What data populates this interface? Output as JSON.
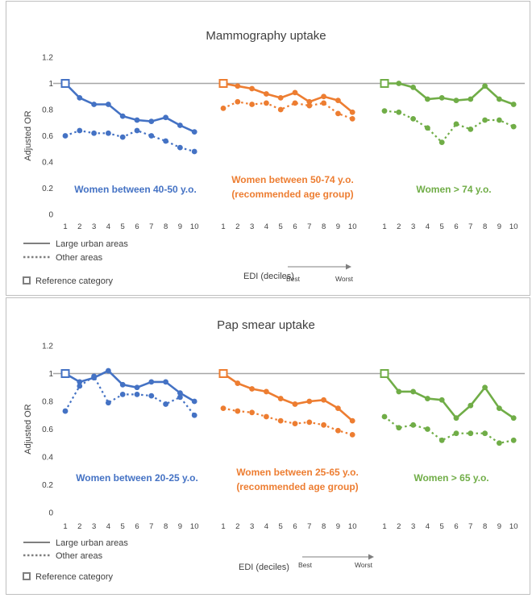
{
  "chart_data": [
    {
      "type": "line",
      "title": "Mammography uptake",
      "ylabel": "Adjusted OR",
      "ylim": [
        0,
        1.2
      ],
      "yticks": [
        "0",
        "0.2",
        "0.4",
        "0.6",
        "0.8",
        "1",
        "1.2"
      ],
      "xlabel": "EDI (deciles)",
      "x_arrow_start": "Best",
      "x_arrow_end": "Worst",
      "x": [
        "1",
        "2",
        "3",
        "4",
        "5",
        "6",
        "7",
        "8",
        "9",
        "10"
      ],
      "reference_line": 1,
      "legend": {
        "large_urban": "Large urban areas",
        "other_areas": "Other areas",
        "reference": "Reference category"
      },
      "panels": [
        {
          "label_line1": "Women between 40-50 y.o.",
          "label_line2": "",
          "color": "#4472c4",
          "large_urban": [
            1.0,
            0.89,
            0.84,
            0.84,
            0.75,
            0.72,
            0.71,
            0.74,
            0.68,
            0.63
          ],
          "other_areas": [
            0.6,
            0.64,
            0.62,
            0.62,
            0.59,
            0.64,
            0.6,
            0.56,
            0.51,
            0.48
          ]
        },
        {
          "label_line1": "Women between 50-74 y.o.",
          "label_line2": "(recommended age group)",
          "color": "#ed7d31",
          "large_urban": [
            1.0,
            0.98,
            0.96,
            0.92,
            0.89,
            0.93,
            0.86,
            0.9,
            0.87,
            0.78
          ],
          "other_areas": [
            0.81,
            0.86,
            0.84,
            0.85,
            0.8,
            0.85,
            0.83,
            0.85,
            0.77,
            0.73
          ]
        },
        {
          "label_line1": "Women > 74 y.o.",
          "label_line2": "",
          "color": "#70ad47",
          "large_urban": [
            1.0,
            1.0,
            0.97,
            0.88,
            0.89,
            0.87,
            0.88,
            0.98,
            0.88,
            0.84
          ],
          "other_areas": [
            0.79,
            0.78,
            0.73,
            0.66,
            0.55,
            0.69,
            0.65,
            0.72,
            0.72,
            0.67
          ]
        }
      ]
    },
    {
      "type": "line",
      "title": "Pap smear uptake",
      "ylabel": "Adjusted OR",
      "ylim": [
        0,
        1.2
      ],
      "yticks": [
        "0",
        "0.2",
        "0.4",
        "0.6",
        "0.8",
        "1",
        "1.2"
      ],
      "xlabel": "EDI (deciles)",
      "x_arrow_start": "Best",
      "x_arrow_end": "Worst",
      "x": [
        "1",
        "2",
        "3",
        "4",
        "5",
        "6",
        "7",
        "8",
        "9",
        "10"
      ],
      "reference_line": 1,
      "legend": {
        "large_urban": "Large urban areas",
        "other_areas": "Other areas",
        "reference": "Reference category"
      },
      "panels": [
        {
          "label_line1": "Women between 20-25 y.o.",
          "label_line2": "",
          "color": "#4472c4",
          "large_urban": [
            1.0,
            0.94,
            0.97,
            1.02,
            0.92,
            0.9,
            0.94,
            0.94,
            0.86,
            0.8
          ],
          "other_areas": [
            0.73,
            0.91,
            0.98,
            0.79,
            0.85,
            0.85,
            0.84,
            0.78,
            0.83,
            0.7
          ]
        },
        {
          "label_line1": "Women between 25-65 y.o.",
          "label_line2": "(recommended age group)",
          "color": "#ed7d31",
          "large_urban": [
            1.0,
            0.93,
            0.89,
            0.87,
            0.82,
            0.78,
            0.8,
            0.81,
            0.75,
            0.66
          ],
          "other_areas": [
            0.75,
            0.73,
            0.72,
            0.69,
            0.66,
            0.64,
            0.65,
            0.63,
            0.59,
            0.56
          ]
        },
        {
          "label_line1": "Women > 65 y.o.",
          "label_line2": "",
          "color": "#70ad47",
          "large_urban": [
            1.0,
            0.87,
            0.87,
            0.82,
            0.81,
            0.68,
            0.77,
            0.9,
            0.75,
            0.68
          ],
          "other_areas": [
            0.69,
            0.61,
            0.63,
            0.6,
            0.52,
            0.57,
            0.57,
            0.57,
            0.5,
            0.52
          ]
        }
      ]
    }
  ]
}
